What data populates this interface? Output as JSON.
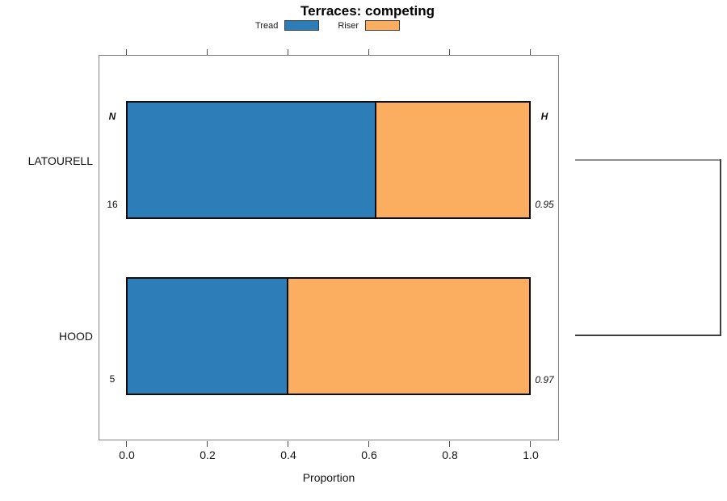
{
  "title": "Terraces: competing",
  "legend": {
    "items": [
      {
        "label": "Tread",
        "color": "#2C7DB8"
      },
      {
        "label": "Riser",
        "color": "#FBAD60"
      }
    ]
  },
  "axis": {
    "xlabel": "Proportion",
    "tick_labels": [
      "0.0",
      "0.2",
      "0.4",
      "0.6",
      "0.8",
      "1.0"
    ]
  },
  "chart_data": {
    "type": "bar",
    "orientation": "horizontal",
    "stacked": true,
    "title": "Terraces: competing",
    "xlabel": "Proportion",
    "xlim": [
      0,
      1
    ],
    "xticks": [
      0.0,
      0.2,
      0.4,
      0.6,
      0.8,
      1.0
    ],
    "grid": false,
    "legend_position": "top",
    "categories": [
      "LATOURELL",
      "HOOD"
    ],
    "series": [
      {
        "name": "Tread",
        "color": "#2C7DB8",
        "values": [
          0.62,
          0.4
        ]
      },
      {
        "name": "Riser",
        "color": "#FBAD60",
        "values": [
          0.38,
          0.6
        ]
      }
    ],
    "annotations": {
      "n_header": "N",
      "h_header": "H",
      "n_values": [
        "16",
        "5"
      ],
      "h_values": [
        "0.95",
        "0.97"
      ]
    },
    "dendrogram": {
      "side": "right",
      "joins_categories": [
        "LATOURELL",
        "HOOD"
      ]
    }
  }
}
